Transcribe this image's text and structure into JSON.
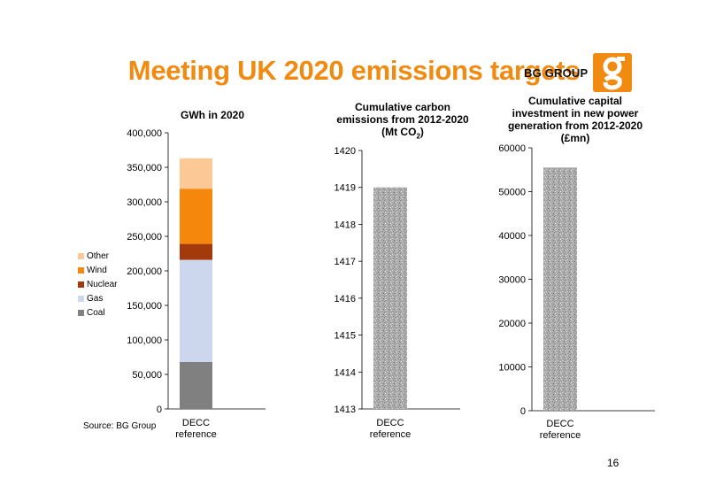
{
  "slide": {
    "title": "Meeting UK 2020 emissions targets",
    "logo_text": "BG GROUP",
    "source": "Source: BG Group",
    "page_number": "16",
    "accent_color": "#f08a10"
  },
  "chart_data": [
    {
      "type": "bar",
      "stacked": true,
      "title": "GWh in 2020",
      "categories": [
        "DECC reference"
      ],
      "ylim": [
        0,
        400000
      ],
      "yticks": [
        "0",
        "50,000",
        "100,000",
        "150,000",
        "200,000",
        "250,000",
        "300,000",
        "350,000",
        "400,000"
      ],
      "ytick_values": [
        0,
        50000,
        100000,
        150000,
        200000,
        250000,
        300000,
        350000,
        400000
      ],
      "legend_placement": "left",
      "series": [
        {
          "name": "Coal",
          "color": "#808080",
          "values": [
            68000
          ]
        },
        {
          "name": "Gas",
          "color": "#ccd6ec",
          "values": [
            148000
          ]
        },
        {
          "name": "Nuclear",
          "color": "#a33a0c",
          "values": [
            23000
          ]
        },
        {
          "name": "Wind",
          "color": "#f5870c",
          "values": [
            80000
          ]
        },
        {
          "name": "Other",
          "color": "#fcc996",
          "values": [
            44000
          ]
        }
      ]
    },
    {
      "type": "bar",
      "title_line1": "Cumulative carbon",
      "title_line2": "emissions from 2012-2020",
      "title_line3": "(Mt CO",
      "title_sub": "2",
      "title_end": ")",
      "categories": [
        "DECC reference"
      ],
      "values": [
        1419
      ],
      "ylim": [
        1413,
        1420
      ],
      "yticks": [
        "1413",
        "1414",
        "1415",
        "1416",
        "1417",
        "1418",
        "1419",
        "1420"
      ],
      "ytick_values": [
        1413,
        1414,
        1415,
        1416,
        1417,
        1418,
        1419,
        1420
      ],
      "bar_color": "#aaaaaa"
    },
    {
      "type": "bar",
      "title_line1": "Cumulative capital",
      "title_line2": "investment in new power",
      "title_line3": "generation from 2012-2020",
      "title_line4": "(£mn)",
      "categories": [
        "DECC reference"
      ],
      "values": [
        55500
      ],
      "ylim": [
        0,
        60000
      ],
      "yticks": [
        "0",
        "10000",
        "20000",
        "30000",
        "40000",
        "50000",
        "60000"
      ],
      "ytick_values": [
        0,
        10000,
        20000,
        30000,
        40000,
        50000,
        60000
      ],
      "bar_color": "#aaaaaa"
    }
  ]
}
